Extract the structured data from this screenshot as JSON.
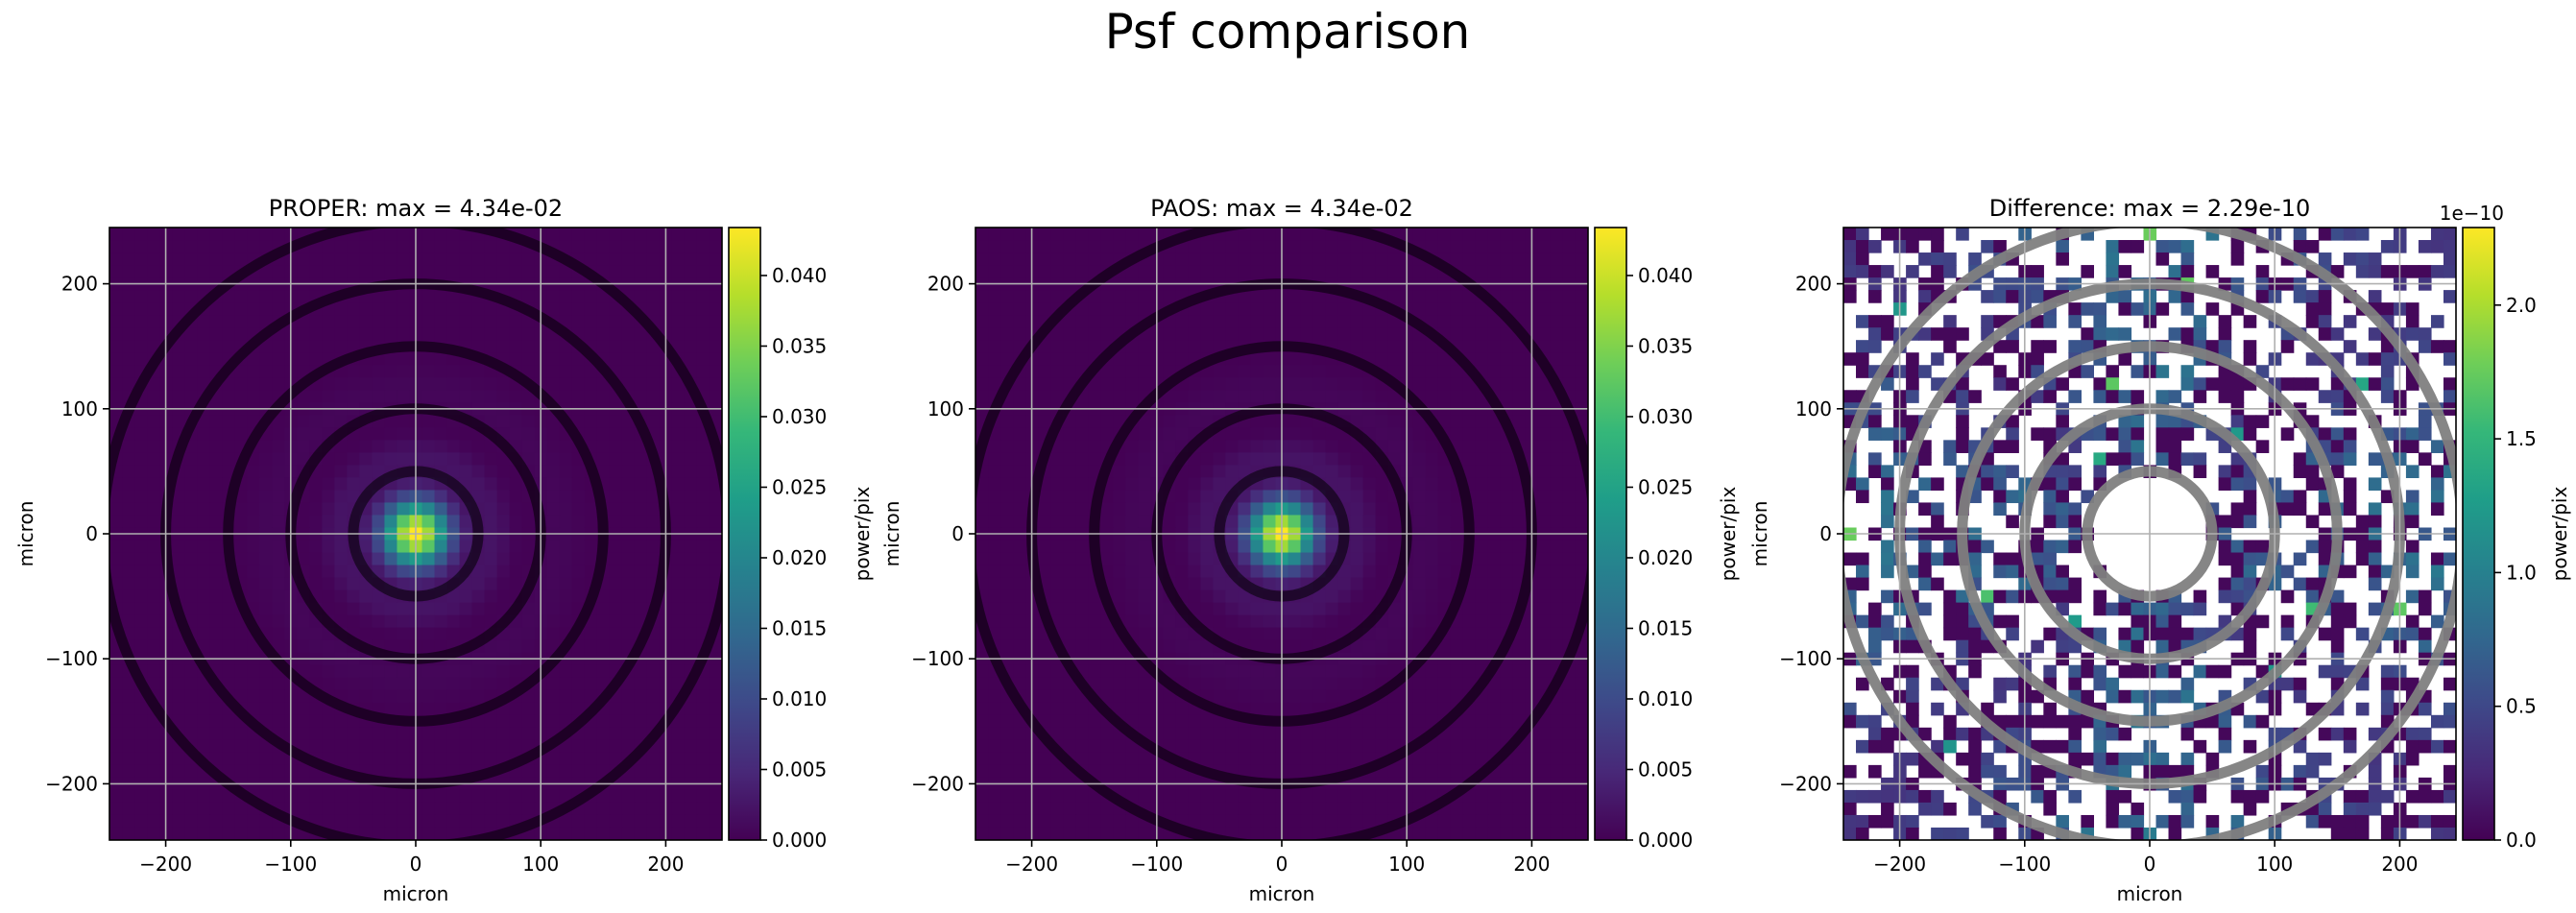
{
  "figure": {
    "suptitle": "Psf comparison"
  },
  "chart_data": [
    {
      "type": "heatmap",
      "title": "PROPER: max = 4.34e-02",
      "xlabel": "micron",
      "ylabel": "micron",
      "xlim": [
        -245,
        245
      ],
      "ylim": [
        -245,
        245
      ],
      "xticks": [
        -200,
        -100,
        0,
        100,
        200
      ],
      "yticks": [
        -200,
        -100,
        0,
        100,
        200
      ],
      "xtick_labels": [
        "−200",
        "−100",
        "0",
        "100",
        "200"
      ],
      "ytick_labels": [
        "−200",
        "−100",
        "0",
        "100",
        "200"
      ],
      "grid": true,
      "colormap": "viridis",
      "peak_value": 0.0434,
      "rings_micron": [
        50,
        100,
        150,
        200,
        250
      ],
      "ring_color": "#000000",
      "colorbar": {
        "label": "power/pix",
        "range": [
          0,
          0.0434
        ],
        "ticks": [
          0.0,
          0.005,
          0.01,
          0.015,
          0.02,
          0.025,
          0.03,
          0.035,
          0.04
        ],
        "tick_labels": [
          "0.000",
          "0.005",
          "0.010",
          "0.015",
          "0.020",
          "0.025",
          "0.030",
          "0.035",
          "0.040"
        ],
        "offset_text": ""
      }
    },
    {
      "type": "heatmap",
      "title": "PAOS: max = 4.34e-02",
      "xlabel": "micron",
      "ylabel": "micron",
      "xlim": [
        -245,
        245
      ],
      "ylim": [
        -245,
        245
      ],
      "xticks": [
        -200,
        -100,
        0,
        100,
        200
      ],
      "yticks": [
        -200,
        -100,
        0,
        100,
        200
      ],
      "xtick_labels": [
        "−200",
        "−100",
        "0",
        "100",
        "200"
      ],
      "ytick_labels": [
        "−200",
        "−100",
        "0",
        "100",
        "200"
      ],
      "grid": true,
      "colormap": "viridis",
      "peak_value": 0.0434,
      "rings_micron": [
        50,
        100,
        150,
        200,
        250
      ],
      "ring_color": "#000000",
      "colorbar": {
        "label": "power/pix",
        "range": [
          0,
          0.0434
        ],
        "ticks": [
          0.0,
          0.005,
          0.01,
          0.015,
          0.02,
          0.025,
          0.03,
          0.035,
          0.04
        ],
        "tick_labels": [
          "0.000",
          "0.005",
          "0.010",
          "0.015",
          "0.020",
          "0.025",
          "0.030",
          "0.035",
          "0.040"
        ],
        "offset_text": ""
      }
    },
    {
      "type": "heatmap",
      "title": "Difference: max = 2.29e-10",
      "xlabel": "micron",
      "ylabel": "micron",
      "xlim": [
        -245,
        245
      ],
      "ylim": [
        -245,
        245
      ],
      "xticks": [
        -200,
        -100,
        0,
        100,
        200
      ],
      "yticks": [
        -200,
        -100,
        0,
        100,
        200
      ],
      "xtick_labels": [
        "−200",
        "−100",
        "0",
        "100",
        "200"
      ],
      "ytick_labels": [
        "−200",
        "−100",
        "0",
        "100",
        "200"
      ],
      "grid": true,
      "colormap": "viridis",
      "peak_value": 2.29e-10,
      "masked_background": "#ffffff",
      "rings_micron": [
        50,
        100,
        150,
        200,
        250
      ],
      "ring_color": "#808080",
      "colorbar": {
        "label": "power/pix",
        "range": [
          0,
          2.29e-10
        ],
        "ticks": [
          0.0,
          5e-11,
          1e-10,
          1.5e-10,
          2e-10
        ],
        "tick_labels": [
          "0.0",
          "0.5",
          "1.0",
          "1.5",
          "2.0"
        ],
        "offset_text": "1e−10"
      }
    }
  ]
}
